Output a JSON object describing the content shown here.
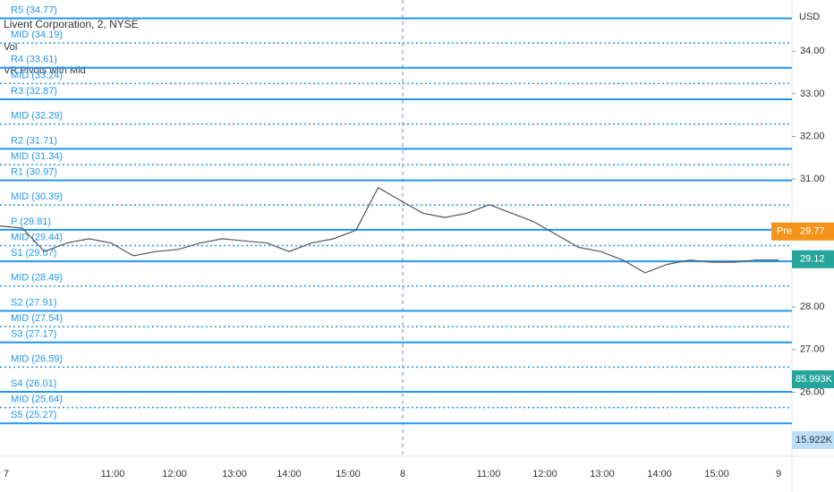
{
  "chart_data": {
    "type": "line",
    "title": "Livent Corporation, 2, NYSE",
    "indicators": [
      "Vol",
      "VR Pivots with Mid"
    ],
    "currency": "USD",
    "ylim": [
      24.5,
      35.2
    ],
    "yticks": [
      {
        "value": 34,
        "label": "34.00"
      },
      {
        "value": 33,
        "label": "33.00"
      },
      {
        "value": 32,
        "label": "32.00"
      },
      {
        "value": 31,
        "label": "31.00"
      },
      {
        "value": 28,
        "label": "28.00"
      },
      {
        "value": 27,
        "label": "27.00"
      },
      {
        "value": 26,
        "label": "26.00"
      }
    ],
    "x_labels": [
      "7",
      "11:00",
      "12:00",
      "13:00",
      "14:00",
      "15:00",
      "8",
      "11:00",
      "12:00",
      "13:00",
      "14:00",
      "15:00",
      "9"
    ],
    "levels": [
      {
        "value": 34.77,
        "label": "R5 (34.77)",
        "style": "solid"
      },
      {
        "value": 34.19,
        "label": "MID (34.19)",
        "style": "dotted"
      },
      {
        "value": 33.61,
        "label": "R4 (33.61)",
        "style": "solid"
      },
      {
        "value": 33.24,
        "label": "MID (33.24)",
        "style": "dotted"
      },
      {
        "value": 32.87,
        "label": "R3 (32.87)",
        "style": "solid"
      },
      {
        "value": 32.29,
        "label": "MID (32.29)",
        "style": "dotted"
      },
      {
        "value": 31.71,
        "label": "R2 (31.71)",
        "style": "solid"
      },
      {
        "value": 31.34,
        "label": "MID (31.34)",
        "style": "dotted"
      },
      {
        "value": 30.97,
        "label": "R1 (30.97)",
        "style": "solid"
      },
      {
        "value": 30.39,
        "label": "MID (30.39)",
        "style": "dotted"
      },
      {
        "value": 29.81,
        "label": "P (29.81)",
        "style": "solid"
      },
      {
        "value": 29.44,
        "label": "MID (29.44)",
        "style": "dotted"
      },
      {
        "value": 29.07,
        "label": "S1 (29.07)",
        "style": "solid"
      },
      {
        "value": 28.49,
        "label": "MID (28.49)",
        "style": "dotted"
      },
      {
        "value": 27.91,
        "label": "S2 (27.91)",
        "style": "solid"
      },
      {
        "value": 27.54,
        "label": "MID (27.54)",
        "style": "dotted"
      },
      {
        "value": 27.17,
        "label": "S3 (27.17)",
        "style": "solid"
      },
      {
        "value": 26.59,
        "label": "MID (26.59)",
        "style": "dotted"
      },
      {
        "value": 26.01,
        "label": "S4 (26.01)",
        "style": "solid"
      },
      {
        "value": 25.64,
        "label": "MID (25.64)",
        "style": "dotted"
      },
      {
        "value": 25.27,
        "label": "S5 (25.27)",
        "style": "solid"
      }
    ],
    "level_color": "#2196f3",
    "price": {
      "color": "#555555",
      "values": [
        29.9,
        29.85,
        29.3,
        29.5,
        29.6,
        29.5,
        29.2,
        29.3,
        29.35,
        29.5,
        29.6,
        29.55,
        29.5,
        29.3,
        29.5,
        29.6,
        29.8,
        30.8,
        30.5,
        30.2,
        30.1,
        30.2,
        30.4,
        30.2,
        30.0,
        29.7,
        29.4,
        29.3,
        29.1,
        28.8,
        29.0,
        29.1,
        29.05,
        29.05,
        29.1,
        29.1
      ]
    },
    "pre_market": {
      "tag": "Pre",
      "value": 29.77,
      "color": "#f7931a"
    },
    "last_price": {
      "value": 29.12,
      "color": "#26a69a"
    },
    "volume_tags": [
      {
        "label": "85.993K",
        "color": "#26a69a"
      },
      {
        "label": "15.922K",
        "color": "#bbdefb"
      }
    ]
  }
}
